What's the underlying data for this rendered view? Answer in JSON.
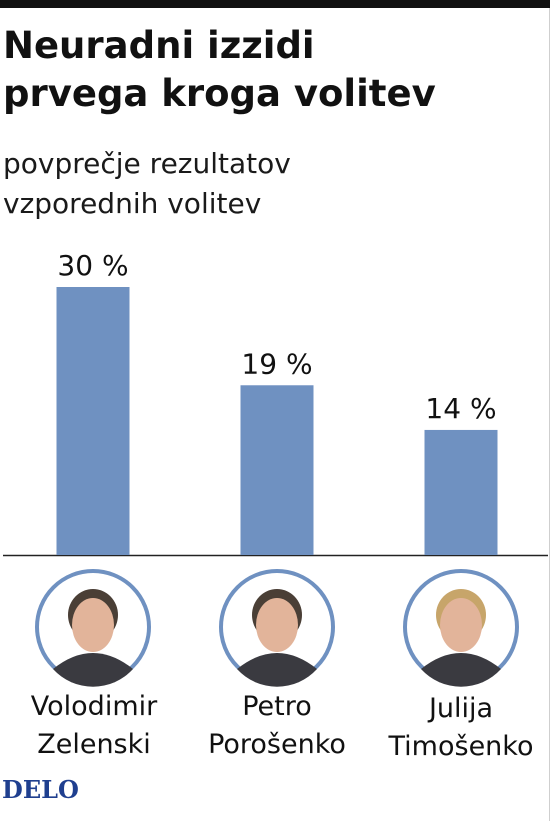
{
  "header": {
    "title_line1": "Neuradni izzidi",
    "title_line2": "prvega kroga volitev",
    "subtitle_line1": "povprečje rezultatov",
    "subtitle_line2": "vzporednih volitev"
  },
  "chart_data": {
    "type": "bar",
    "title": "Neuradni izzidi prvega kroga volitev",
    "subtitle": "povprečje rezultatov vzporednih volitev",
    "categories": [
      "Volodimir Zelenski",
      "Petro Porošenko",
      "Julija Timošenko"
    ],
    "values": [
      30,
      19,
      14
    ],
    "data_labels": [
      "30 %",
      "19 %",
      "14 %"
    ],
    "unit": "%",
    "ylim": [
      0,
      30
    ],
    "grid": false,
    "legend": "none",
    "bar_color": "#6f91c1"
  },
  "candidates": [
    {
      "first": "Volodimir",
      "last": "Zelenski"
    },
    {
      "first": "Petro",
      "last": "Porošenko"
    },
    {
      "first": "Julija",
      "last": "Timošenko"
    }
  ],
  "source": {
    "logo": "DELO"
  },
  "colors": {
    "bar": "#6f91c1",
    "ring": "#6f91c1",
    "text": "#111111",
    "logo": "#1f3f8f"
  }
}
